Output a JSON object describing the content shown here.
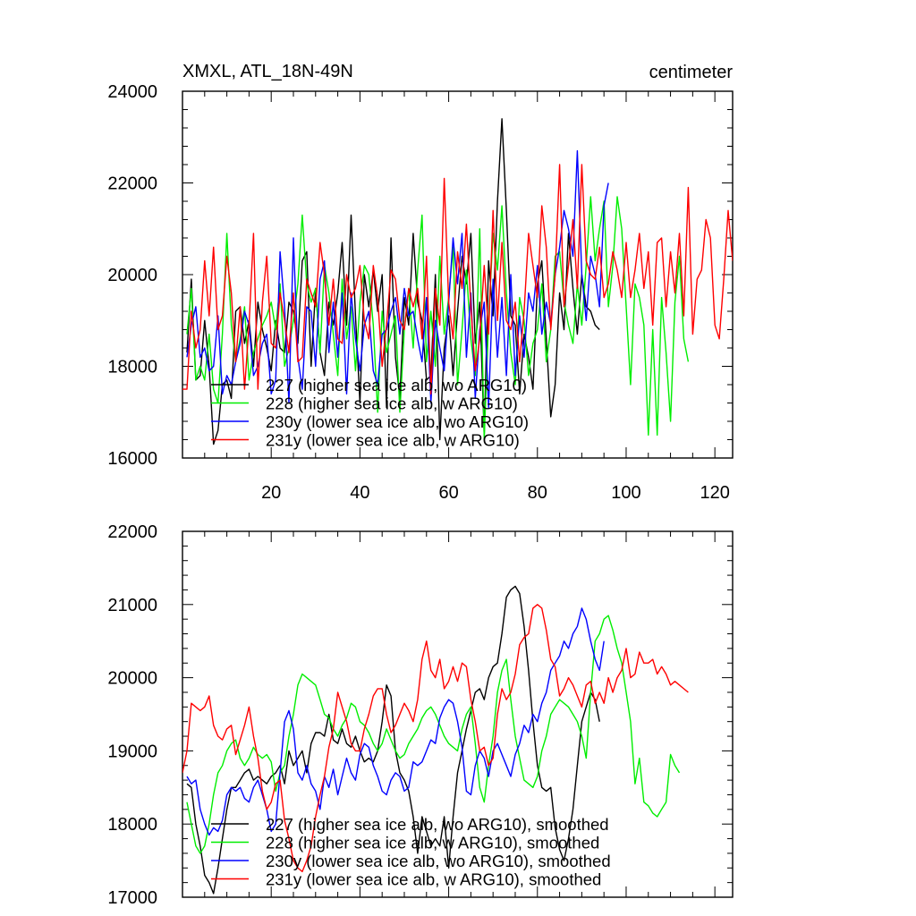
{
  "figure": {
    "title_left": "XMXL, ATL_18N-49N",
    "title_right": "centimeter"
  },
  "chart_data": [
    {
      "type": "line",
      "title": "XMXL, ATL_18N-49N",
      "units": "centimeter",
      "xlim": [
        0,
        124
      ],
      "ylim": [
        16000,
        24000
      ],
      "xticks": [
        20,
        40,
        60,
        80,
        100,
        120
      ],
      "yticks": [
        16000,
        18000,
        20000,
        22000,
        24000
      ],
      "legend_position": "lower-left",
      "series": [
        {
          "name": "227 (higher sea ice alb, wo ARG10)",
          "color": "#000000",
          "x_start": 1,
          "values": [
            18300,
            19900,
            17700,
            17800,
            19000,
            18000,
            16300,
            16600,
            17600,
            17700,
            17300,
            19200,
            19300,
            18500,
            19000,
            18000,
            19400,
            18800,
            18400,
            17900,
            19000,
            18400,
            18300,
            19400,
            19200,
            18500,
            20300,
            20500,
            18000,
            19700,
            18300,
            17800,
            19400,
            18900,
            19600,
            20700,
            18900,
            21300,
            19100,
            17200,
            20000,
            19300,
            20100,
            19200,
            20000,
            17100,
            20800,
            18200,
            17300,
            19500,
            18900,
            20900,
            19400,
            19000,
            17700,
            17800,
            20000,
            16400,
            18400,
            19100,
            17800,
            19200,
            20400,
            19800,
            20900,
            18500,
            19400,
            16500,
            20300,
            19100,
            21600,
            23400,
            21400,
            19100,
            18900,
            17400,
            18700,
            18200,
            17500,
            19800,
            20300,
            18600,
            16900,
            17600,
            19600,
            18800,
            20900,
            19700,
            18700,
            20000,
            19300,
            19200,
            18900,
            18800
          ]
        },
        {
          "name": "228 (higher sea ice alb, w ARG10)",
          "color": "#00ee00",
          "x_start": 1,
          "values": [
            18700,
            19700,
            17700,
            18000,
            17700,
            18700,
            17500,
            17200,
            18700,
            20900,
            18900,
            18100,
            18600,
            19300,
            17700,
            18300,
            18600,
            18900,
            19100,
            19400,
            18800,
            19800,
            18000,
            18400,
            19000,
            19800,
            21300,
            19800,
            19400,
            19700,
            18300,
            20200,
            19600,
            18700,
            17800,
            19900,
            18600,
            19300,
            17900,
            19400,
            20200,
            20000,
            18900,
            17000,
            19200,
            18300,
            18700,
            19100,
            17000,
            18800,
            19700,
            18400,
            20100,
            21300,
            18100,
            19200,
            18000,
            20400,
            18700,
            19500,
            20600,
            17600,
            18800,
            20100,
            18600,
            17800,
            21000,
            16400,
            19000,
            20900,
            20100,
            21500,
            19600,
            18300,
            17600,
            19500,
            19000,
            17800,
            18500,
            18800,
            19800,
            18100,
            18800,
            20400,
            20500,
            19400,
            18900,
            18500,
            19800,
            18900,
            20200,
            21700,
            20300,
            21000,
            21600,
            19300,
            20200,
            21700,
            21000,
            19300,
            17600,
            19800,
            19500,
            18900,
            16500,
            18800,
            16500,
            19500,
            18300,
            16800,
            19400,
            20400,
            18600,
            18100
          ]
        },
        {
          "name": "230y (lower sea ice alb, wo ARG10)",
          "color": "#0000ff",
          "x_start": 1,
          "values": [
            18200,
            18900,
            19300,
            18200,
            18400,
            17900,
            18000,
            19100,
            17400,
            17800,
            17600,
            18100,
            18500,
            19200,
            18900,
            17800,
            18000,
            18500,
            18700,
            17400,
            17700,
            20500,
            19300,
            17200,
            20800,
            18200,
            17500,
            19300,
            19200,
            18000,
            19900,
            20300,
            18300,
            19400,
            18200,
            19600,
            17400,
            19600,
            18600,
            17900,
            18900,
            19200,
            17900,
            17600,
            18700,
            18800,
            19200,
            19500,
            18700,
            19700,
            19100,
            19200,
            18600,
            18100,
            19500,
            17200,
            19000,
            18400,
            17900,
            19400,
            20800,
            19800,
            20900,
            18200,
            19600,
            17300,
            18800,
            19400,
            17100,
            19900,
            18200,
            19500,
            17800,
            20000,
            17800,
            19100,
            18200,
            19600,
            19200,
            20200,
            18700,
            19400,
            18900,
            20000,
            20600,
            21400,
            21000,
            20400,
            22700,
            20000,
            19000,
            20400,
            20000,
            19300,
            21500,
            22000
          ]
        },
        {
          "name": "231y (lower sea ice alb, w ARG10)",
          "color": "#ff0000",
          "x_start": 0,
          "values": [
            17500,
            17500,
            19200,
            18400,
            18800,
            20300,
            19100,
            20600,
            18800,
            19100,
            20400,
            19600,
            18100,
            19300,
            17500,
            18900,
            20900,
            17500,
            19400,
            20400,
            18500,
            18400,
            19600,
            19000,
            18300,
            19600,
            18100,
            18200,
            19900,
            19600,
            19300,
            20700,
            20000,
            18900,
            19900,
            18600,
            18500,
            20000,
            19500,
            19700,
            20200,
            19000,
            18600,
            20200,
            19500,
            18000,
            18900,
            20100,
            19900,
            19000,
            18800,
            19700,
            19300,
            19700,
            18600,
            20400,
            17400,
            19700,
            18900,
            22100,
            19400,
            18600,
            20500,
            19700,
            21100,
            19300,
            17900,
            18600,
            20200,
            18700,
            21400,
            19000,
            20700,
            19000,
            18800,
            19400,
            18100,
            19200,
            20900,
            20200,
            19500,
            21500,
            20600,
            18800,
            20000,
            22400,
            19300,
            20200,
            21200,
            19700,
            22400,
            20300,
            20000,
            19900,
            20600,
            19500,
            19800,
            20500,
            20100,
            19500,
            20700,
            19500,
            20100,
            20900,
            19700,
            20500,
            18900,
            20700,
            20800,
            19300,
            20500,
            19600,
            20900,
            19100,
            21900,
            18700,
            19900,
            20100,
            21200,
            20800,
            18900,
            18600,
            19900,
            21400,
            20300
          ]
        }
      ]
    },
    {
      "type": "line",
      "title": "",
      "xlim": [
        0,
        124
      ],
      "ylim": [
        17000,
        22000
      ],
      "xticks": [
        20,
        40,
        60,
        80,
        100,
        120
      ],
      "yticks": [
        17000,
        18000,
        19000,
        20000,
        21000,
        22000
      ],
      "legend_position": "lower-left",
      "series": [
        {
          "name": "227 (higher sea ice alb, wo ARG10), smoothed",
          "color": "#000000",
          "x_start": 1,
          "values": [
            18550,
            18500,
            18000,
            17700,
            17300,
            17200,
            17050,
            17400,
            17800,
            18200,
            18500,
            18500,
            18600,
            18700,
            18750,
            18600,
            18650,
            18600,
            18550,
            18650,
            18700,
            18800,
            18550,
            19000,
            18800,
            18900,
            19000,
            18700,
            19100,
            19250,
            19250,
            19200,
            19500,
            19150,
            19100,
            19300,
            19100,
            19050,
            19200,
            19000,
            18850,
            18900,
            18850,
            19000,
            19400,
            19900,
            19750,
            19000,
            18700,
            18600,
            18450,
            18100,
            17600,
            18100,
            17900,
            17700,
            17800,
            17700,
            18100,
            17400,
            18100,
            18700,
            19000,
            19300,
            19550,
            19800,
            19850,
            19700,
            20000,
            20150,
            20200,
            20600,
            21100,
            21200,
            21250,
            21150,
            20700,
            20100,
            19400,
            18800,
            18500,
            18450,
            18500,
            17950,
            17650,
            17500,
            17800,
            18200,
            18800,
            19400,
            19600,
            19800,
            19700,
            19400
          ]
        },
        {
          "name": "228 (higher sea ice alb, w ARG10), smoothed",
          "color": "#00ee00",
          "x_start": 1,
          "values": [
            18300,
            18000,
            17700,
            17600,
            17700,
            18000,
            18400,
            18700,
            18800,
            19000,
            19100,
            19150,
            18900,
            18800,
            18900,
            19050,
            18950,
            18900,
            18950,
            18850,
            18450,
            18700,
            18800,
            19200,
            19500,
            19900,
            20050,
            20000,
            19950,
            19900,
            19700,
            19500,
            19450,
            19300,
            19200,
            19350,
            19450,
            19650,
            19600,
            19400,
            19350,
            19250,
            19100,
            19000,
            19100,
            19300,
            19150,
            19000,
            18900,
            18950,
            19100,
            19200,
            19300,
            19450,
            19550,
            19600,
            19500,
            19350,
            19200,
            19100,
            19050,
            19000,
            19300,
            19500,
            19600,
            19100,
            18500,
            18300,
            18800,
            19200,
            19800,
            20100,
            20250,
            19700,
            19200,
            18900,
            18600,
            18550,
            18500,
            18650,
            19000,
            19200,
            19500,
            19600,
            19700,
            19650,
            19600,
            19500,
            19400,
            19200,
            18900,
            19800,
            20500,
            20600,
            20800,
            20850,
            20650,
            20400,
            20200,
            19800,
            19400,
            18550,
            18900,
            18300,
            18250,
            18150,
            18100,
            18200,
            18300,
            18950,
            18800,
            18700
          ]
        },
        {
          "name": "230y (lower sea ice alb, wo ARG10), smoothed",
          "color": "#0000ff",
          "x_start": 1,
          "values": [
            18650,
            18550,
            18600,
            18200,
            18000,
            17850,
            17950,
            17900,
            18050,
            18400,
            18500,
            18450,
            18500,
            18350,
            18300,
            18500,
            18600,
            18400,
            18200,
            17900,
            18000,
            18700,
            19400,
            19550,
            19300,
            18700,
            18600,
            18800,
            18550,
            18450,
            18200,
            18650,
            18500,
            18750,
            18400,
            18650,
            18900,
            18700,
            18600,
            18950,
            19100,
            19050,
            18800,
            18650,
            18450,
            18400,
            18600,
            18700,
            18650,
            18450,
            18500,
            18850,
            18800,
            18850,
            19000,
            19150,
            19100,
            19450,
            19600,
            19700,
            19650,
            19400,
            19050,
            18450,
            18400,
            18800,
            19000,
            18900,
            18650,
            19000,
            19100,
            18950,
            18800,
            18650,
            18950,
            19100,
            19350,
            19250,
            19500,
            19400,
            19650,
            19800,
            20100,
            20200,
            20300,
            20500,
            20400,
            20600,
            20700,
            20950,
            20800,
            20500,
            20250,
            20100,
            20500
          ]
        },
        {
          "name": "231y (lower sea ice alb, w ARG10), smoothed",
          "color": "#ff0000",
          "x_start": 0,
          "values": [
            18700,
            19000,
            19650,
            19600,
            19550,
            19600,
            19750,
            19350,
            19200,
            19150,
            19300,
            19350,
            18950,
            19150,
            19350,
            19600,
            19200,
            18900,
            18450,
            18200,
            18300,
            18550,
            18600,
            18050,
            17800,
            17500,
            17400,
            17350,
            17500,
            17700,
            18100,
            18400,
            18650,
            19050,
            19300,
            19800,
            19600,
            19400,
            19100,
            19000,
            19000,
            19300,
            19500,
            19750,
            19850,
            19850,
            19500,
            19250,
            19350,
            19500,
            19650,
            19550,
            19400,
            19700,
            20250,
            20500,
            20100,
            20000,
            20250,
            19850,
            19950,
            20150,
            19950,
            20200,
            20150,
            19700,
            19400,
            19000,
            19050,
            18800,
            18900,
            19500,
            19850,
            19700,
            19800,
            20050,
            20450,
            20550,
            20600,
            20950,
            21000,
            20950,
            20650,
            20250,
            20150,
            19750,
            19850,
            20000,
            19900,
            19750,
            19600,
            19900,
            19950,
            19650,
            19800,
            19650,
            20000,
            19800,
            20000,
            20100,
            20400,
            20000,
            20050,
            20350,
            20200,
            20200,
            20250,
            20050,
            20150,
            20050,
            19900,
            19950,
            19900,
            19850,
            19800
          ]
        }
      ]
    }
  ]
}
